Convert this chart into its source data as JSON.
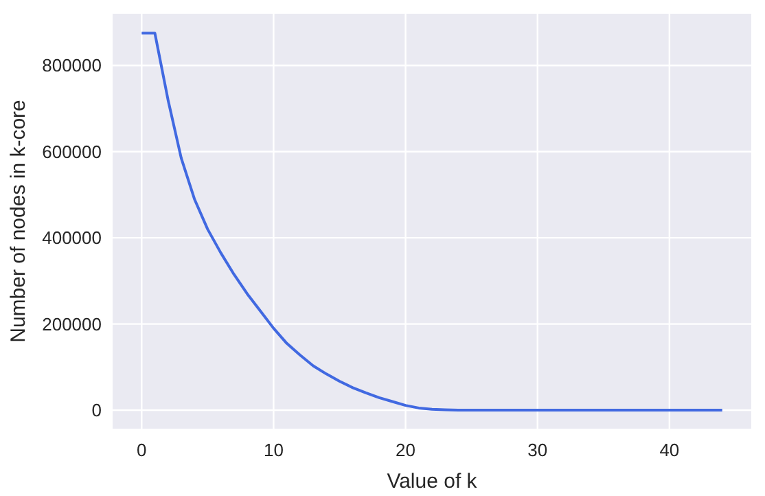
{
  "chart_data": {
    "type": "line",
    "xlabel": "Value of k",
    "ylabel": "Number of nodes in k-core",
    "x": [
      0,
      1,
      2,
      3,
      4,
      5,
      6,
      7,
      8,
      9,
      10,
      11,
      12,
      13,
      14,
      15,
      16,
      17,
      18,
      19,
      20,
      21,
      22,
      23,
      24,
      26,
      28,
      30,
      32,
      34,
      36,
      38,
      40,
      42,
      44
    ],
    "series": [
      {
        "color": "#4169e1",
        "values": [
          875000,
          875000,
          720000,
          585000,
          490000,
          420000,
          365000,
          315000,
          270000,
          230000,
          190000,
          155000,
          128000,
          103000,
          84000,
          67000,
          52000,
          40000,
          29000,
          20000,
          11000,
          5000,
          2000,
          1000,
          0,
          0,
          0,
          0,
          0,
          0,
          0,
          0,
          0,
          0,
          0
        ]
      }
    ],
    "xlim": [
      -2.2,
      46.2
    ],
    "ylim": [
      -43000,
      920000
    ],
    "xticks": [
      0,
      10,
      20,
      30,
      40
    ],
    "yticks": [
      0,
      200000,
      400000,
      600000,
      800000
    ],
    "grid": true,
    "line_style": "solid",
    "marker": "none"
  }
}
